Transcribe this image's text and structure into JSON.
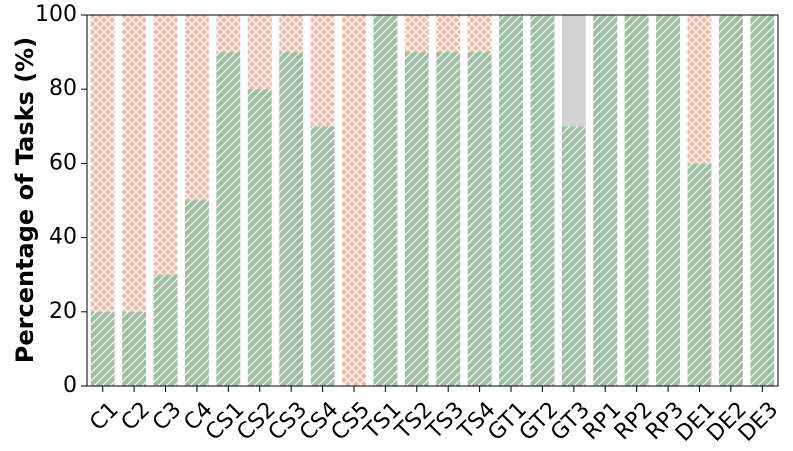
{
  "chart_data": {
    "type": "stacked_bar",
    "ylabel": "Percentage of Tasks (%)",
    "categories": [
      "C1",
      "C2",
      "C3",
      "C4",
      "CS1",
      "CS2",
      "CS3",
      "CS4",
      "CS5",
      "TS1",
      "TS2",
      "TS3",
      "TS4",
      "GT1",
      "GT2",
      "GT3",
      "RP1",
      "RP2",
      "RP3",
      "DE1",
      "DE2",
      "DE3"
    ],
    "series": [
      {
        "color": "#9dbf9f",
        "hatch": "diagonal",
        "values": [
          20,
          20,
          30,
          50,
          90,
          80,
          90,
          70,
          0,
          100,
          90,
          90,
          90,
          100,
          100,
          70,
          100,
          100,
          100,
          60,
          100,
          100
        ]
      },
      {
        "color": "#f4b9a4",
        "hatch": "cross",
        "values": [
          80,
          80,
          70,
          50,
          10,
          20,
          10,
          30,
          100,
          0,
          10,
          10,
          10,
          0,
          0,
          0,
          0,
          0,
          0,
          40,
          0,
          0
        ]
      },
      {
        "color": "#d3d3d3",
        "hatch": "none",
        "values": [
          0,
          0,
          0,
          0,
          0,
          0,
          0,
          0,
          0,
          0,
          0,
          0,
          0,
          0,
          0,
          30,
          0,
          0,
          0,
          0,
          0,
          0
        ]
      }
    ],
    "ylim": [
      0,
      100
    ],
    "yticks": [
      0,
      20,
      40,
      60,
      80,
      100
    ]
  }
}
